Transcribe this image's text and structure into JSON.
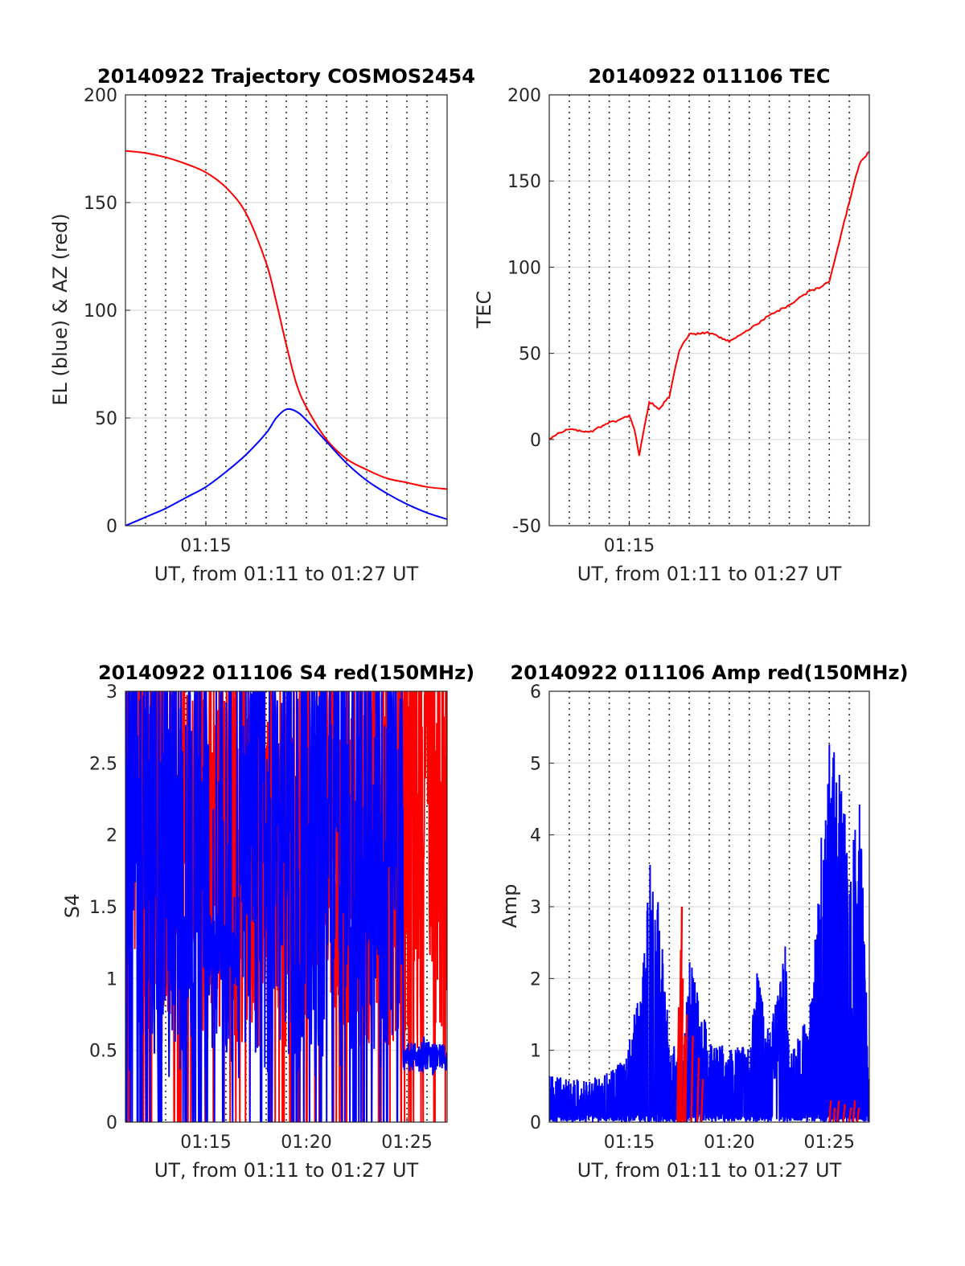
{
  "figure": {
    "colors": {
      "red": "#ff0000",
      "blue": "#0000ff",
      "grid": "#dcdcdc",
      "axis": "#262626"
    }
  },
  "chart_data": [
    {
      "type": "line",
      "title": "20140922 Trajectory COSMOS2454",
      "xlabel": "UT, from 01:11 to 01:27 UT",
      "ylabel": "EL (blue) & AZ (red)",
      "xlim": [
        "01:11",
        "01:27"
      ],
      "ylim": [
        0,
        200
      ],
      "yticks": [
        "0",
        "50",
        "100",
        "150",
        "200"
      ],
      "xticks": [
        {
          "t": "01:15",
          "label": "01:15"
        }
      ],
      "vgrid_minutes": [
        1,
        2,
        3,
        4,
        5,
        6,
        7,
        8,
        9,
        10,
        11,
        12,
        13,
        14,
        15
      ],
      "series": [
        {
          "color": "#ff0000",
          "x": [
            "01:11",
            "01:12",
            "01:13",
            "01:14",
            "01:15",
            "01:16",
            "01:17",
            "01:18",
            "01:18:30",
            "01:19",
            "01:19:30",
            "01:20",
            "01:21",
            "01:22",
            "01:23",
            "01:24",
            "01:25",
            "01:26",
            "01:27"
          ],
          "values": [
            174,
            173,
            171,
            168,
            164,
            157,
            145,
            122,
            104,
            84,
            66,
            55,
            40,
            31,
            26,
            22,
            20,
            18,
            17
          ]
        },
        {
          "color": "#0000ff",
          "x": [
            "01:11",
            "01:12",
            "01:13",
            "01:14",
            "01:15",
            "01:16",
            "01:17",
            "01:18",
            "01:18:30",
            "01:19",
            "01:19:30",
            "01:20",
            "01:21",
            "01:22",
            "01:23",
            "01:24",
            "01:25",
            "01:26",
            "01:27"
          ],
          "values": [
            0,
            4,
            8,
            13,
            18,
            25,
            33,
            43,
            50,
            54,
            53,
            49,
            39,
            29,
            21,
            15,
            10,
            6,
            3
          ]
        }
      ]
    },
    {
      "type": "line",
      "title": "20140922 011106 TEC",
      "xlabel": "UT, from 01:11 to 01:27 UT",
      "ylabel": "TEC",
      "xlim": [
        "01:11",
        "01:27"
      ],
      "ylim": [
        -50,
        200
      ],
      "yticks": [
        "-50",
        "0",
        "50",
        "100",
        "150",
        "200"
      ],
      "xticks": [
        {
          "t": "01:15",
          "label": "01:15"
        }
      ],
      "vgrid_minutes": [
        1,
        2,
        3,
        4,
        5,
        6,
        7,
        8,
        9,
        10,
        11,
        12,
        13,
        14,
        15
      ],
      "series": [
        {
          "color": "#ff0000",
          "x": [
            "01:11",
            "01:11:30",
            "01:12",
            "01:13",
            "01:14",
            "01:14:30",
            "01:15",
            "01:15:15",
            "01:15:30",
            "01:16",
            "01:16:30",
            "01:17",
            "01:17:30",
            "01:18",
            "01:19",
            "01:20",
            "01:21",
            "01:22",
            "01:23",
            "01:24",
            "01:24:30",
            "01:25",
            "01:25:30",
            "01:26",
            "01:26:30",
            "01:27"
          ],
          "values": [
            0,
            4,
            6,
            4,
            10,
            11,
            14,
            6,
            -9,
            22,
            18,
            25,
            52,
            61,
            62,
            57,
            64,
            72,
            78,
            86,
            88,
            92,
            115,
            138,
            160,
            167
          ]
        }
      ]
    },
    {
      "type": "line",
      "title": "20140922 011106 S4 red(150MHz)",
      "xlabel": "UT, from 01:11 to 01:27 UT",
      "ylabel": "S4",
      "xlim": [
        "01:11",
        "01:27"
      ],
      "ylim": [
        0,
        3
      ],
      "yticks": [
        "0",
        "0.5",
        "1",
        "1.5",
        "2",
        "2.5",
        "3"
      ],
      "xticks": [
        {
          "t": "01:15",
          "label": "01:15"
        },
        {
          "t": "01:20",
          "label": "01:20"
        },
        {
          "t": "01:25",
          "label": "01:25"
        }
      ],
      "vgrid_minutes": [
        1,
        2,
        3,
        4,
        5,
        6,
        7,
        8,
        9,
        10,
        11,
        12,
        13,
        14,
        15
      ],
      "series": [
        {
          "color": "#ff0000",
          "x_minutes": [
            0,
            16
          ],
          "mean": 2.0,
          "noise": 1.5,
          "note_type": "noisy"
        },
        {
          "color": "#0000ff",
          "x_minutes": [
            0,
            16
          ],
          "mean": 1.9,
          "noise": 1.6,
          "note_type": "noisy"
        }
      ]
    },
    {
      "type": "line",
      "title": "20140922 011106 Amp red(150MHz)",
      "xlabel": "UT, from 01:11 to 01:27 UT",
      "ylabel": "Amp",
      "xlim": [
        "01:11",
        "01:27"
      ],
      "ylim": [
        0,
        6
      ],
      "yticks": [
        "0",
        "1",
        "2",
        "3",
        "4",
        "5",
        "6"
      ],
      "xticks": [
        {
          "t": "01:15",
          "label": "01:15"
        },
        {
          "t": "01:20",
          "label": "01:20"
        },
        {
          "t": "01:25",
          "label": "01:25"
        }
      ],
      "vgrid_minutes": [
        1,
        2,
        3,
        4,
        5,
        6,
        7,
        8,
        9,
        10,
        11,
        12,
        13,
        14,
        15
      ],
      "series": [
        {
          "color": "#0000ff",
          "envelope_x_minutes": [
            0,
            1,
            2,
            3,
            3.8,
            4.4,
            4.7,
            5,
            5.5,
            6,
            6.5,
            6.7,
            7,
            8,
            9,
            10,
            10.4,
            11,
            11.8,
            12,
            13,
            13.7,
            14,
            14.5,
            15,
            15.5,
            16
          ],
          "envelope_peak": [
            0.7,
            0.6,
            0.6,
            0.7,
            0.9,
            1.7,
            2.2,
            3.8,
            3.0,
            1.2,
            1.0,
            0.9,
            2.3,
            1.2,
            1.0,
            1.1,
            2.3,
            1.2,
            2.5,
            1.0,
            1.5,
            4.5,
            5.3,
            5.0,
            4.3,
            4.8,
            0.6
          ]
        },
        {
          "color": "#ff0000",
          "spikes_x_minutes": [
            6.4,
            6.5,
            6.55,
            6.6,
            6.7,
            6.8,
            7.1,
            7.4,
            7.6,
            14.0,
            14.2,
            14.4,
            14.7,
            15.0,
            15.2,
            15.4
          ],
          "spikes_values": [
            1.6,
            2.4,
            3.0,
            2.0,
            1.2,
            1.5,
            1.2,
            0.9,
            0.6,
            0.3,
            0.2,
            0.3,
            0.25,
            0.2,
            0.3,
            0.2
          ]
        }
      ]
    }
  ]
}
